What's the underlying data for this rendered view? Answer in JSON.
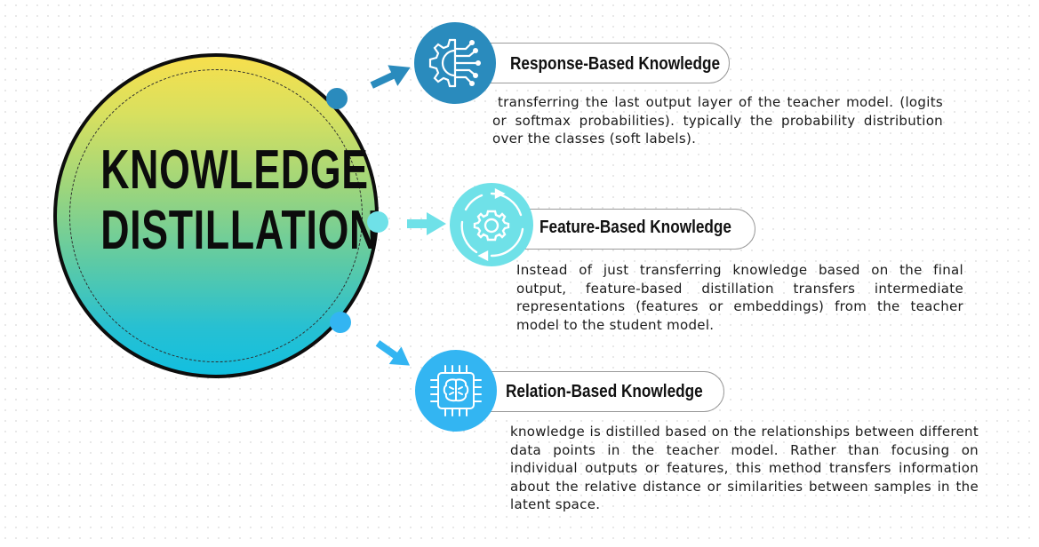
{
  "title_lines": [
    "KNOWLEDGE",
    "DISTILLATION"
  ],
  "colors": {
    "response": "#2a8bbd",
    "feature": "#6fe1e8",
    "relation": "#33b5f2",
    "outline": "#0d0d0d"
  },
  "branches": [
    {
      "label": "Response-Based Knowledge",
      "icon": "gear-circuit-icon",
      "description": "transferring the last output layer of the teacher model. (logits or softmax probabilities). typically the probability distribution over the classes (soft labels)."
    },
    {
      "label": "Feature-Based Knowledge",
      "icon": "gear-cycle-icon",
      "description": "Instead of just transferring knowledge based on the final output, feature-based distillation transfers intermediate representations (features or embeddings) from the teacher model to the student model."
    },
    {
      "label": "Relation-Based Knowledge",
      "icon": "brain-chip-icon",
      "description": "knowledge is distilled based on the relationships between different data points in the teacher model. Rather than focusing on individual outputs or features, this method transfers information about the relative distance or similarities between samples in the latent space."
    }
  ]
}
